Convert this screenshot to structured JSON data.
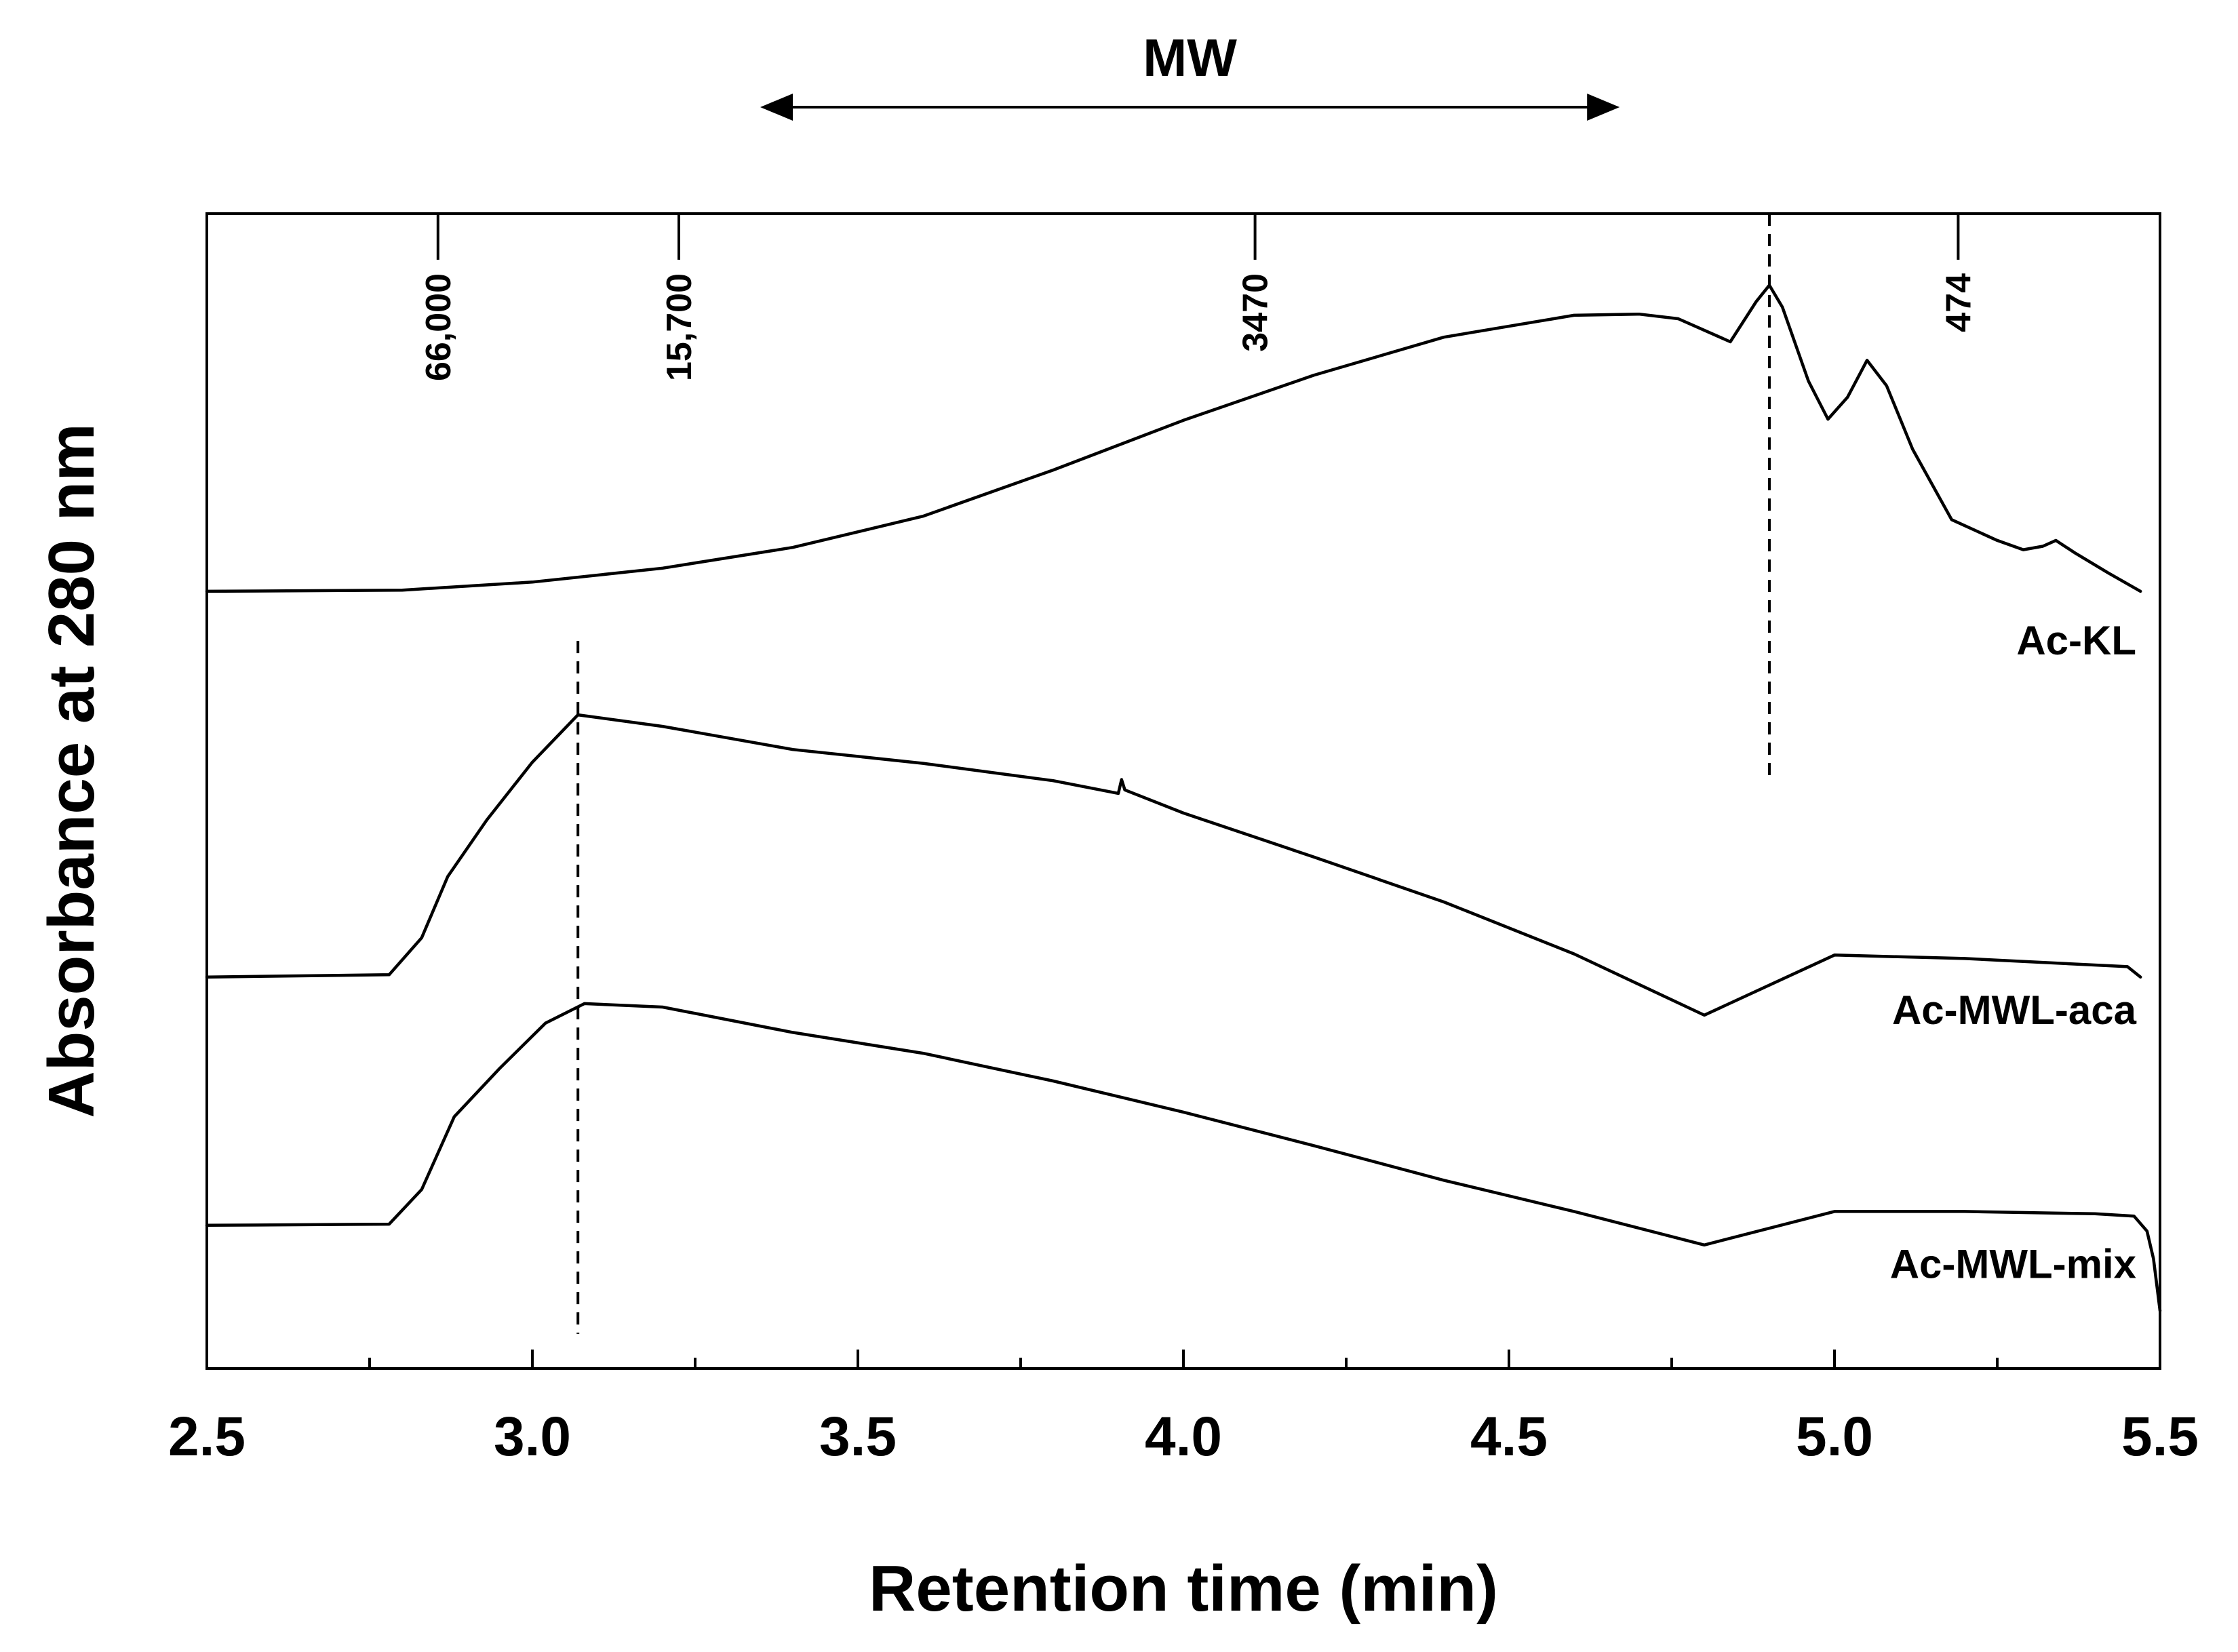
{
  "chart_data": {
    "type": "line",
    "title": "",
    "xlabel": "Retention time (min)",
    "ylabel": "Absorbance at 280 nm",
    "xlim": [
      2.5,
      5.5
    ],
    "ylim": [
      0,
      100
    ],
    "x_ticks": [
      "2.5",
      "3.0",
      "3.5",
      "4.0",
      "4.5",
      "5.0",
      "5.5"
    ],
    "x_tick_values": [
      2.5,
      3.0,
      3.5,
      4.0,
      4.5,
      5.0,
      5.5
    ],
    "x_minor_ticks": [
      2.75,
      3.25,
      3.75,
      4.25,
      4.75,
      5.25
    ],
    "grid": false,
    "legend": "none (series labelled inline at right)",
    "mw_annotation": {
      "label": "MW",
      "from": 3.35,
      "to": 4.67,
      "direction": "both"
    },
    "mw_standards": [
      {
        "label": "66,000",
        "x": 2.855
      },
      {
        "label": "15,700",
        "x": 3.225
      },
      {
        "label": "3470",
        "x": 4.11
      },
      {
        "label": "474",
        "x": 5.19
      }
    ],
    "reference_lines": [
      {
        "x": 4.9,
        "y_from": 51,
        "y_to": 100,
        "style": "dashed"
      },
      {
        "x": 3.07,
        "y_from": 3,
        "y_to": 63,
        "style": "dashed"
      }
    ],
    "series": [
      {
        "name": "Ac-KL",
        "x": [
          2.5,
          2.8,
          3.0,
          3.2,
          3.4,
          3.6,
          3.8,
          4.0,
          4.2,
          4.4,
          4.6,
          4.7,
          4.76,
          4.84,
          4.88,
          4.9,
          4.92,
          4.96,
          4.99,
          5.02,
          5.05,
          5.08,
          5.12,
          5.18,
          5.25,
          5.29,
          5.32,
          5.34,
          5.37,
          5.42,
          5.47
        ],
        "values": [
          67.3,
          67.4,
          68.1,
          69.3,
          71.1,
          73.8,
          77.8,
          82.1,
          86.0,
          89.3,
          91.2,
          91.3,
          90.9,
          88.9,
          92.4,
          93.8,
          91.9,
          85.5,
          82.2,
          84.1,
          87.3,
          85.1,
          79.6,
          73.5,
          71.7,
          70.9,
          71.2,
          71.7,
          70.6,
          68.9,
          67.3
        ],
        "label_y": 63
      },
      {
        "name": "Ac-MWL-aca",
        "x": [
          2.5,
          2.78,
          2.83,
          2.87,
          2.93,
          3.0,
          3.07,
          3.2,
          3.4,
          3.6,
          3.8,
          3.9,
          3.905,
          3.91,
          4.0,
          4.2,
          4.4,
          4.6,
          4.8,
          5.0,
          5.2,
          5.45,
          5.47
        ],
        "values": [
          33.9,
          34.1,
          37.3,
          42.6,
          47.5,
          52.5,
          56.6,
          55.6,
          53.6,
          52.4,
          50.9,
          49.8,
          51.0,
          50.1,
          48.1,
          44.3,
          40.4,
          35.9,
          30.6,
          35.8,
          35.5,
          34.8,
          33.9
        ],
        "label_y": 31
      },
      {
        "name": "Ac-MWL-mix",
        "x": [
          2.5,
          2.78,
          2.83,
          2.88,
          2.95,
          3.02,
          3.08,
          3.2,
          3.4,
          3.6,
          3.8,
          4.0,
          4.2,
          4.4,
          4.6,
          4.8,
          5.0,
          5.2,
          5.4,
          5.46,
          5.48,
          5.49,
          5.5
        ],
        "values": [
          12.4,
          12.5,
          15.5,
          21.8,
          26.0,
          29.9,
          31.6,
          31.3,
          29.1,
          27.3,
          24.9,
          22.2,
          19.3,
          16.3,
          13.6,
          10.7,
          13.6,
          13.6,
          13.4,
          13.2,
          11.9,
          9.5,
          5.0
        ],
        "label_y": 9
      }
    ]
  }
}
